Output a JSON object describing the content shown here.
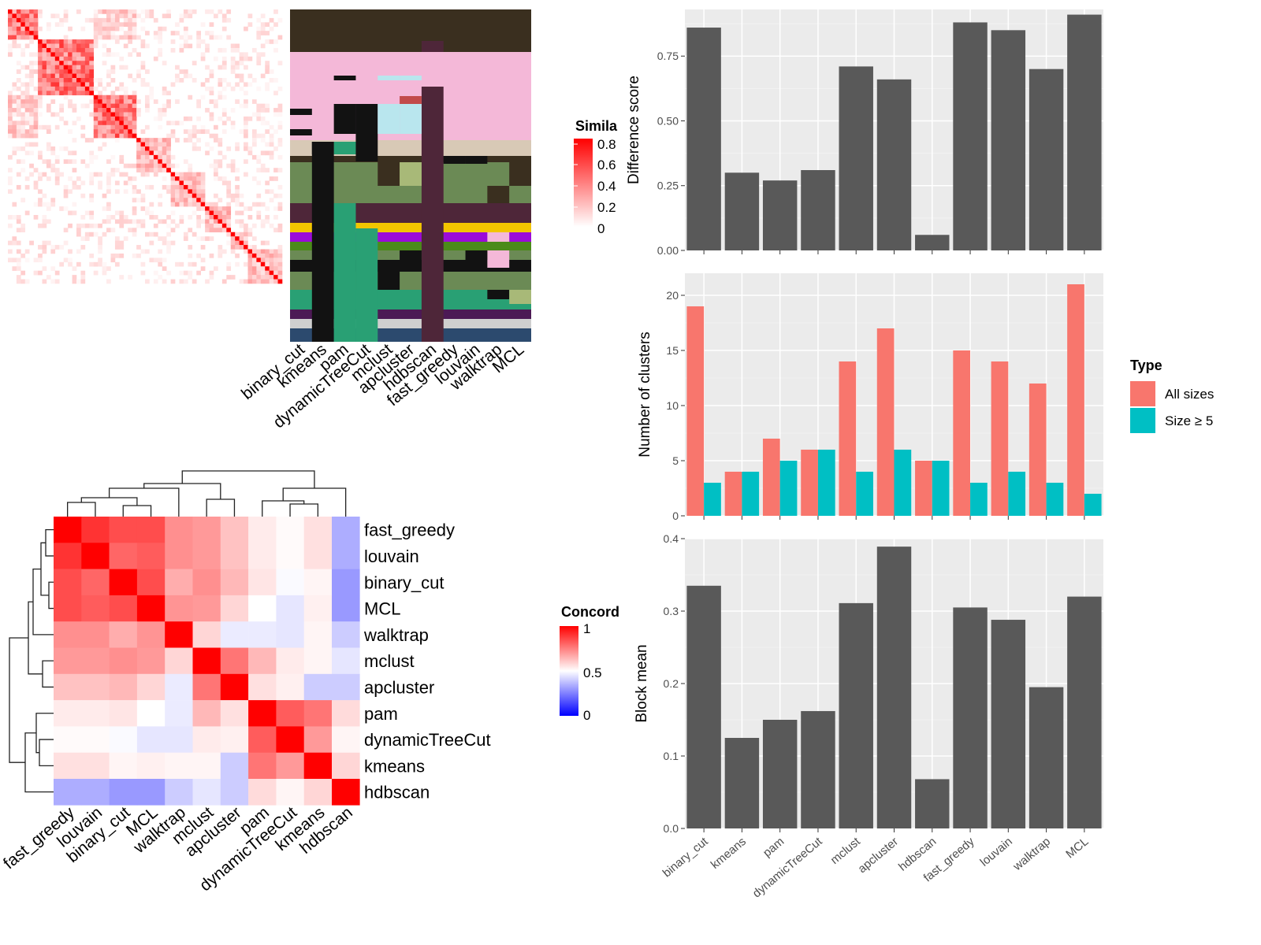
{
  "chart_data": [
    {
      "type": "heatmap",
      "id": "similarity",
      "legend": {
        "title": "Simila",
        "ticks": [
          "0.8",
          "0.6",
          "0.4",
          "0.2",
          "0"
        ]
      },
      "colors": {
        "high": "#ff0000",
        "low": "#ffffff"
      }
    },
    {
      "type": "heatmap",
      "id": "cluster_assignments",
      "columns": [
        "binary_cut",
        "kmeans",
        "pam",
        "dynamicTreeCut",
        "mclust",
        "apcluster",
        "hdbscan",
        "fast_greedy",
        "louvain",
        "walktrap",
        "MCL"
      ]
    },
    {
      "type": "heatmap",
      "id": "concordance",
      "rows": [
        "fast_greedy",
        "louvain",
        "binary_cut",
        "MCL",
        "walktrap",
        "mclust",
        "apcluster",
        "pam",
        "dynamicTreeCut",
        "kmeans",
        "hdbscan"
      ],
      "values": [
        [
          1.0,
          0.9,
          0.85,
          0.85,
          0.72,
          0.7,
          0.62,
          0.54,
          0.51,
          0.56,
          0.34
        ],
        [
          0.9,
          1.0,
          0.8,
          0.82,
          0.72,
          0.7,
          0.62,
          0.54,
          0.51,
          0.56,
          0.34
        ],
        [
          0.85,
          0.8,
          1.0,
          0.85,
          0.66,
          0.72,
          0.64,
          0.55,
          0.49,
          0.52,
          0.3
        ],
        [
          0.85,
          0.82,
          0.85,
          1.0,
          0.71,
          0.7,
          0.58,
          0.5,
          0.45,
          0.53,
          0.3
        ],
        [
          0.72,
          0.72,
          0.66,
          0.71,
          1.0,
          0.58,
          0.46,
          0.46,
          0.45,
          0.52,
          0.4
        ],
        [
          0.7,
          0.7,
          0.72,
          0.7,
          0.58,
          1.0,
          0.77,
          0.64,
          0.54,
          0.52,
          0.45
        ],
        [
          0.62,
          0.62,
          0.64,
          0.58,
          0.46,
          0.77,
          1.0,
          0.56,
          0.53,
          0.4,
          0.4
        ],
        [
          0.54,
          0.54,
          0.55,
          0.5,
          0.46,
          0.64,
          0.56,
          1.0,
          0.82,
          0.77,
          0.57
        ],
        [
          0.51,
          0.51,
          0.49,
          0.45,
          0.45,
          0.54,
          0.53,
          0.82,
          1.0,
          0.7,
          0.52
        ],
        [
          0.56,
          0.56,
          0.52,
          0.53,
          0.52,
          0.52,
          0.4,
          0.77,
          0.7,
          1.0,
          0.58
        ],
        [
          0.34,
          0.34,
          0.3,
          0.3,
          0.4,
          0.45,
          0.4,
          0.57,
          0.52,
          0.58,
          1.0
        ]
      ],
      "legend": {
        "title": "Concord",
        "ticks": [
          "1",
          "0.5",
          "0"
        ]
      },
      "colors": {
        "high": "#ff0000",
        "mid": "#ffffff",
        "low": "#0000ff"
      }
    },
    {
      "type": "bar",
      "id": "difference_score",
      "ylabel": "Difference score",
      "categories": [
        "binary_cut",
        "kmeans",
        "pam",
        "dynamicTreeCut",
        "mclust",
        "apcluster",
        "hdbscan",
        "fast_greedy",
        "louvain",
        "walktrap",
        "MCL"
      ],
      "values": [
        0.86,
        0.3,
        0.27,
        0.31,
        0.71,
        0.66,
        0.06,
        0.88,
        0.85,
        0.7,
        0.91
      ],
      "ylim": [
        0,
        0.93
      ],
      "yticks": [
        "0.00",
        "0.25",
        "0.50",
        "0.75"
      ],
      "color": "#595959"
    },
    {
      "type": "bar",
      "id": "number_of_clusters",
      "ylabel": "Number of clusters",
      "categories": [
        "binary_cut",
        "kmeans",
        "pam",
        "dynamicTreeCut",
        "mclust",
        "apcluster",
        "hdbscan",
        "fast_greedy",
        "louvain",
        "walktrap",
        "MCL"
      ],
      "series": [
        {
          "name": "All sizes",
          "color": "#f8766d",
          "values": [
            19,
            4,
            7,
            6,
            14,
            17,
            5,
            15,
            14,
            12,
            21
          ]
        },
        {
          "name": "Size ≥ 5",
          "color": "#00bfc4",
          "values": [
            3,
            4,
            5,
            6,
            4,
            6,
            5,
            3,
            4,
            3,
            2
          ]
        }
      ],
      "ylim": [
        0,
        22
      ],
      "yticks": [
        "0",
        "5",
        "10",
        "15",
        "20"
      ],
      "legend": {
        "title": "Type"
      }
    },
    {
      "type": "bar",
      "id": "block_mean",
      "ylabel": "Block mean",
      "categories": [
        "binary_cut",
        "kmeans",
        "pam",
        "dynamicTreeCut",
        "mclust",
        "apcluster",
        "hdbscan",
        "fast_greedy",
        "louvain",
        "walktrap",
        "MCL"
      ],
      "values": [
        0.335,
        0.125,
        0.15,
        0.162,
        0.311,
        0.389,
        0.068,
        0.305,
        0.288,
        0.195,
        0.32
      ],
      "ylim": [
        0,
        0.4
      ],
      "yticks": [
        "0.0",
        "0.1",
        "0.2",
        "0.3",
        "0.4"
      ],
      "color": "#595959"
    }
  ]
}
